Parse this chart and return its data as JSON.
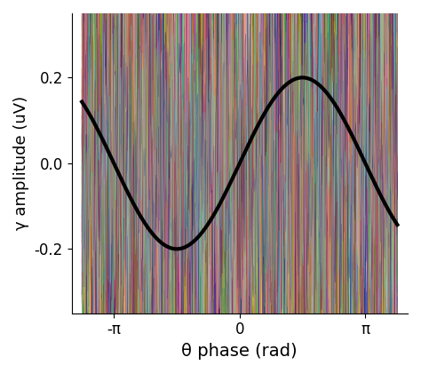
{
  "title": "",
  "xlabel": "θ phase (rad)",
  "ylabel": "γ amplitude (uV)",
  "xlim": [
    -4.2,
    4.2
  ],
  "ylim": [
    -0.35,
    0.35
  ],
  "yticks": [
    -0.2,
    0.0,
    0.2
  ],
  "xtick_labels": [
    "-π",
    "0",
    "π"
  ],
  "xtick_positions": [
    -3.14159,
    0,
    3.14159
  ],
  "noise_amplitude": 0.28,
  "signal_amplitude": 0.2,
  "n_noise_traces": 80,
  "n_signal_points": 1000,
  "background_color": "#ffffff",
  "signal_color": "#000000",
  "signal_linewidth": 3.0,
  "noise_linewidth": 0.4,
  "xlabel_fontsize": 14,
  "ylabel_fontsize": 13,
  "tick_fontsize": 12
}
